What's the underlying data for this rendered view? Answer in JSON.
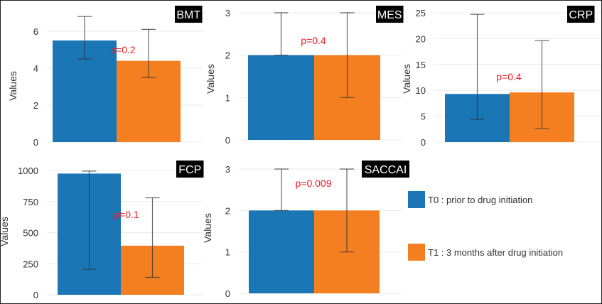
{
  "legend": {
    "items": [
      {
        "label": "T0 : prior to drug initiation",
        "color": "#1a76b5"
      },
      {
        "label": "T1 : 3 months after drug initiation",
        "color": "#f47f20"
      }
    ]
  },
  "chart_data": [
    {
      "type": "bar",
      "title": "BMT",
      "ylabel": "Values",
      "categories": [
        "T0",
        "T1"
      ],
      "values": [
        5.5,
        4.4
      ],
      "error_low": [
        4.5,
        3.5
      ],
      "error_high": [
        6.8,
        6.1
      ],
      "ylim": [
        0,
        7
      ],
      "yticks": [
        "0",
        "2",
        "4",
        "6"
      ],
      "annotation": "p=0.2",
      "grid": true
    },
    {
      "type": "bar",
      "title": "MES",
      "ylabel": "Values",
      "categories": [
        "T0",
        "T1"
      ],
      "values": [
        2,
        2
      ],
      "error_low": [
        2,
        1
      ],
      "error_high": [
        3,
        3
      ],
      "ylim": [
        0,
        3.1
      ],
      "yticks": [
        "0",
        "1",
        "2",
        "3"
      ],
      "annotation": "p=0.4",
      "grid": true
    },
    {
      "type": "bar",
      "title": "CRP",
      "ylabel": "Values",
      "categories": [
        "T0",
        "T1"
      ],
      "values": [
        9.3,
        9.6
      ],
      "error_low": [
        4.4,
        2.6
      ],
      "error_high": [
        24.7,
        19.6
      ],
      "ylim": [
        0,
        26
      ],
      "yticks": [
        "0",
        "5",
        "10",
        "15",
        "20",
        "25"
      ],
      "annotation": "p=0.4",
      "grid": true
    },
    {
      "type": "bar",
      "title": "FCP",
      "ylabel": "Values",
      "categories": [
        "T0",
        "T1"
      ],
      "values": [
        975,
        395
      ],
      "error_low": [
        205,
        140
      ],
      "error_high": [
        995,
        780
      ],
      "ylim": [
        0,
        1050
      ],
      "yticks": [
        "0",
        "250",
        "500",
        "750",
        "1000"
      ],
      "annotation": "p=0.1",
      "grid": true
    },
    {
      "type": "bar",
      "title": "SACCAI",
      "ylabel": "Values",
      "categories": [
        "T0",
        "T1"
      ],
      "values": [
        2,
        2
      ],
      "error_low": [
        2,
        1
      ],
      "error_high": [
        3,
        3
      ],
      "ylim": [
        0,
        3.1
      ],
      "yticks": [
        "0",
        "1",
        "2",
        "3"
      ],
      "annotation": "p=0.009",
      "grid": true
    }
  ]
}
